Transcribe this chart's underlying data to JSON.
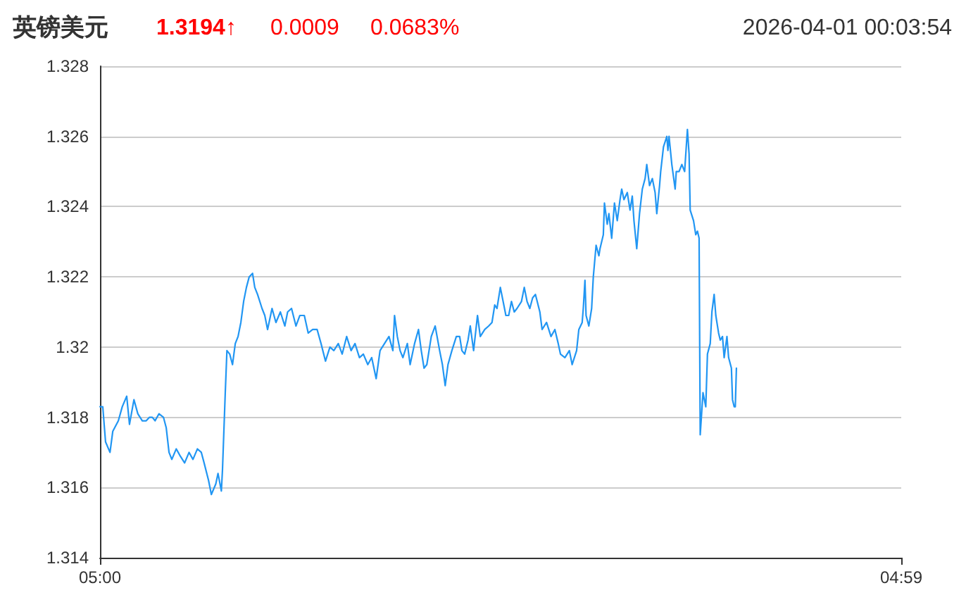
{
  "chart_data": {
    "type": "line",
    "title": "英镑美元",
    "annotations": [
      "1.3194↑",
      "0.0009",
      "0.0683%",
      "2026-04-01 00:03:54"
    ],
    "x": [
      "2026-03-31T05:00",
      "2026-03-31T05:05",
      "2026-03-31T05:10",
      "2026-03-31T05:18",
      "2026-03-31T05:23",
      "2026-03-31T05:33",
      "2026-03-31T05:40",
      "2026-03-31T05:48",
      "2026-03-31T05:53",
      "2026-03-31T06:01",
      "2026-03-31T06:08",
      "2026-03-31T06:16",
      "2026-03-31T06:23",
      "2026-03-31T06:29",
      "2026-03-31T06:34",
      "2026-03-31T06:39",
      "2026-03-31T06:46",
      "2026-03-31T06:54",
      "2026-03-31T06:59",
      "2026-03-31T07:04",
      "2026-03-31T07:09",
      "2026-03-31T07:17",
      "2026-03-31T07:24",
      "2026-03-31T07:32",
      "2026-03-31T07:40",
      "2026-03-31T07:47",
      "2026-03-31T07:55",
      "2026-03-31T08:02",
      "2026-03-31T08:07",
      "2026-03-31T08:15",
      "2026-03-31T08:20",
      "2026-03-31T08:28",
      "2026-03-31T08:32",
      "2026-03-31T08:38",
      "2026-03-31T08:40",
      "2026-03-31T08:45",
      "2026-03-31T08:48",
      "2026-03-31T08:53",
      "2026-03-31T08:58",
      "2026-03-31T09:03",
      "2026-03-31T09:08",
      "2026-03-31T09:13",
      "2026-03-31T09:18",
      "2026-03-31T09:23",
      "2026-03-31T09:28",
      "2026-03-31T09:34",
      "2026-03-31T09:38",
      "2026-03-31T09:43",
      "2026-03-31T09:51",
      "2026-03-31T09:56",
      "2026-03-31T10:01",
      "2026-03-31T10:09",
      "2026-03-31T10:16",
      "2026-03-31T10:24",
      "2026-03-31T10:32",
      "2026-03-31T10:37",
      "2026-03-31T10:44",
      "2026-03-31T10:52",
      "2026-03-31T10:59",
      "2026-03-31T11:07",
      "2026-03-31T11:14",
      "2026-03-31T11:22",
      "2026-03-31T11:30",
      "2026-03-31T11:37",
      "2026-03-31T11:45",
      "2026-03-31T11:53",
      "2026-03-31T12:00",
      "2026-03-31T12:08",
      "2026-03-31T12:15",
      "2026-03-31T12:23",
      "2026-03-31T12:31",
      "2026-03-31T12:38",
      "2026-03-31T12:46",
      "2026-03-31T12:53",
      "2026-03-31T13:01",
      "2026-03-31T13:08",
      "2026-03-31T13:16",
      "2026-03-31T13:23",
      "2026-03-31T13:31",
      "2026-03-31T13:39",
      "2026-03-31T13:46",
      "2026-03-31T13:49",
      "2026-03-31T13:54",
      "2026-03-31T13:59",
      "2026-03-31T14:04",
      "2026-03-31T14:12",
      "2026-03-31T14:17",
      "2026-03-31T14:25",
      "2026-03-31T14:32",
      "2026-03-31T14:37",
      "2026-03-31T14:42",
      "2026-03-31T14:47",
      "2026-03-31T14:55",
      "2026-03-31T15:02",
      "2026-03-31T15:10",
      "2026-03-31T15:15",
      "2026-03-31T15:20",
      "2026-03-31T15:25",
      "2026-03-31T15:32",
      "2026-03-31T15:40",
      "2026-03-31T15:46",
      "2026-03-31T15:50",
      "2026-03-31T15:55",
      "2026-03-31T16:01",
      "2026-03-31T16:05",
      "2026-03-31T16:11",
      "2026-03-31T16:18",
      "2026-03-31T16:23",
      "2026-03-31T16:31",
      "2026-03-31T16:38",
      "2026-03-31T16:44",
      "2026-03-31T16:49",
      "2026-03-31T16:53",
      "2026-03-31T16:59",
      "2026-03-31T17:04",
      "2026-03-31T17:09",
      "2026-03-31T17:14",
      "2026-03-31T17:19",
      "2026-03-31T17:24",
      "2026-03-31T17:29",
      "2026-03-31T17:37",
      "2026-03-31T17:42",
      "2026-03-31T17:47",
      "2026-03-31T17:52",
      "2026-03-31T17:57",
      "2026-03-31T18:02",
      "2026-03-31T18:10",
      "2026-03-31T18:14",
      "2026-03-31T18:22",
      "2026-03-31T18:30",
      "2026-03-31T18:37",
      "2026-03-31T18:43",
      "2026-03-31T18:47",
      "2026-03-31T18:55",
      "2026-03-31T19:03",
      "2026-03-31T19:08",
      "2026-03-31T19:16",
      "2026-03-31T19:20",
      "2026-03-31T19:26",
      "2026-03-31T19:28",
      "2026-03-31T19:31",
      "2026-03-31T19:33",
      "2026-03-31T19:38",
      "2026-03-31T19:43",
      "2026-03-31T19:46",
      "2026-03-31T19:51",
      "2026-03-31T19:56",
      "2026-03-31T19:58",
      "2026-03-31T20:04",
      "2026-03-31T20:06",
      "2026-03-31T20:11",
      "2026-03-31T20:14",
      "2026-03-31T20:19",
      "2026-03-31T20:24",
      "2026-03-31T20:29",
      "2026-03-31T20:34",
      "2026-03-31T20:37",
      "2026-03-31T20:41",
      "2026-03-31T20:47",
      "2026-03-31T20:52",
      "2026-03-31T20:56",
      "2026-03-31T20:59",
      "2026-03-31T21:04",
      "2026-03-31T21:09",
      "2026-03-31T21:14",
      "2026-03-31T21:19",
      "2026-03-31T21:22",
      "2026-03-31T21:27",
      "2026-03-31T21:32",
      "2026-03-31T21:37",
      "2026-03-31T21:40",
      "2026-03-31T21:45",
      "2026-03-31T21:47",
      "2026-03-31T21:52",
      "2026-03-31T21:58",
      "2026-03-31T22:00",
      "2026-03-31T22:02",
      "2026-03-31T22:07",
      "2026-03-31T22:13",
      "2026-03-31T22:15",
      "2026-03-31T22:20",
      "2026-03-31T22:25",
      "2026-03-31T22:30",
      "2026-03-31T22:35",
      "2026-03-31T22:38",
      "2026-03-31T22:40",
      "2026-03-31T22:46",
      "2026-03-31T22:50",
      "2026-03-31T22:53",
      "2026-03-31T22:56",
      "2026-03-31T22:58",
      "2026-03-31T23:03",
      "2026-03-31T23:08",
      "2026-03-31T23:11",
      "2026-03-31T23:16",
      "2026-03-31T23:19",
      "2026-03-31T23:23",
      "2026-03-31T23:26",
      "2026-03-31T23:31",
      "2026-03-31T23:34",
      "2026-03-31T23:38",
      "2026-03-31T23:41",
      "2026-03-31T23:46",
      "2026-03-31T23:49",
      "2026-03-31T23:54",
      "2026-03-31T23:56",
      "2026-03-31T23:59",
      "2026-04-01T00:01",
      "2026-04-01T00:03"
    ],
    "values": [
      1.3183,
      1.3183,
      1.3173,
      1.317,
      1.3176,
      1.3179,
      1.3183,
      1.3186,
      1.3178,
      1.3185,
      1.3181,
      1.3179,
      1.3179,
      1.318,
      1.318,
      1.3179,
      1.3181,
      1.318,
      1.3177,
      1.317,
      1.3168,
      1.3171,
      1.3169,
      1.3167,
      1.317,
      1.3168,
      1.3171,
      1.317,
      1.3167,
      1.3162,
      1.3158,
      1.3161,
      1.3164,
      1.3159,
      1.3165,
      1.3187,
      1.3199,
      1.3198,
      1.3195,
      1.3201,
      1.3203,
      1.3207,
      1.3213,
      1.3217,
      1.322,
      1.3221,
      1.3217,
      1.3215,
      1.3211,
      1.3209,
      1.3205,
      1.3211,
      1.3207,
      1.321,
      1.3206,
      1.321,
      1.3211,
      1.3206,
      1.3209,
      1.3209,
      1.3204,
      1.3205,
      1.3205,
      1.3201,
      1.3196,
      1.32,
      1.3199,
      1.3201,
      1.3198,
      1.3203,
      1.3199,
      1.3201,
      1.3197,
      1.3198,
      1.3195,
      1.3197,
      1.3191,
      1.3199,
      1.3201,
      1.3203,
      1.3199,
      1.3209,
      1.3203,
      1.3199,
      1.3197,
      1.3201,
      1.3195,
      1.3201,
      1.3205,
      1.3199,
      1.3194,
      1.3195,
      1.3203,
      1.3206,
      1.3199,
      1.3195,
      1.3189,
      1.3195,
      1.3199,
      1.3203,
      1.3203,
      1.3199,
      1.3198,
      1.3202,
      1.3206,
      1.3199,
      1.3209,
      1.3203,
      1.3205,
      1.3206,
      1.3207,
      1.3212,
      1.3211,
      1.3217,
      1.3213,
      1.3209,
      1.3209,
      1.3213,
      1.321,
      1.3211,
      1.3213,
      1.3217,
      1.3213,
      1.3211,
      1.3214,
      1.3215,
      1.321,
      1.3205,
      1.3207,
      1.3203,
      1.3205,
      1.3201,
      1.3198,
      1.3197,
      1.3199,
      1.3195,
      1.3199,
      1.3205,
      1.3207,
      1.3211,
      1.3219,
      1.3209,
      1.3206,
      1.3211,
      1.322,
      1.3229,
      1.3226,
      1.3228,
      1.3232,
      1.3241,
      1.3235,
      1.3238,
      1.3231,
      1.3241,
      1.3236,
      1.3242,
      1.3245,
      1.3242,
      1.3244,
      1.3239,
      1.3243,
      1.3236,
      1.3228,
      1.3238,
      1.3245,
      1.3248,
      1.3252,
      1.3246,
      1.3248,
      1.3244,
      1.3238,
      1.3246,
      1.325,
      1.3257,
      1.326,
      1.3256,
      1.326,
      1.3252,
      1.3245,
      1.325,
      1.325,
      1.3252,
      1.325,
      1.3262,
      1.3255,
      1.3239,
      1.3236,
      1.3232,
      1.3233,
      1.3231,
      1.3175,
      1.3187,
      1.3183,
      1.3198,
      1.3201,
      1.321,
      1.3215,
      1.3209,
      1.3204,
      1.3202,
      1.3203,
      1.3197,
      1.3203,
      1.3197,
      1.3194,
      1.3185,
      1.3183,
      1.3183,
      1.3194
    ],
    "color": "#2196f3",
    "line_style": "solid",
    "marker": "none",
    "grid": "y",
    "xlim": [
      "2026-03-31T05:00",
      "2026-04-01T04:59"
    ],
    "xticks": [
      {
        "value": "2026-03-31T05:00",
        "label": "05:00"
      },
      {
        "value": "2026-04-01T04:59",
        "label": "04:59"
      }
    ],
    "ylim": [
      1.314,
      1.328
    ],
    "yticks": [
      1.314,
      1.316,
      1.318,
      1.32,
      1.322,
      1.324,
      1.326,
      1.328
    ]
  }
}
